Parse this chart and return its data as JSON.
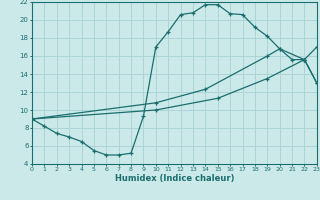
{
  "bg_color": "#cce9ea",
  "grid_color": "#add5d7",
  "line_color": "#1a6e6e",
  "xlabel": "Humidex (Indice chaleur)",
  "xlim": [
    0,
    23
  ],
  "ylim": [
    4,
    22
  ],
  "xticks": [
    0,
    1,
    2,
    3,
    4,
    5,
    6,
    7,
    8,
    9,
    10,
    11,
    12,
    13,
    14,
    15,
    16,
    17,
    18,
    19,
    20,
    21,
    22,
    23
  ],
  "yticks": [
    4,
    6,
    8,
    10,
    12,
    14,
    16,
    18,
    20,
    22
  ],
  "curve1_x": [
    0,
    1,
    2,
    3,
    4,
    5,
    6,
    7,
    8,
    9,
    10,
    11,
    12,
    13,
    14,
    15,
    16,
    17,
    18,
    19,
    20,
    21,
    22,
    23
  ],
  "curve1_y": [
    9.0,
    8.2,
    7.4,
    7.0,
    6.5,
    5.5,
    5.0,
    5.0,
    5.2,
    9.3,
    17.0,
    18.7,
    20.6,
    20.8,
    21.7,
    21.7,
    20.7,
    20.6,
    19.2,
    18.2,
    16.8,
    15.6,
    15.6,
    13.0
  ],
  "curve2_x": [
    0,
    10,
    14,
    19,
    20,
    22,
    23
  ],
  "curve2_y": [
    9.0,
    10.8,
    12.3,
    16.0,
    16.8,
    15.6,
    17.0
  ],
  "curve3_x": [
    0,
    10,
    15,
    19,
    22,
    23
  ],
  "curve3_y": [
    9.0,
    10.0,
    11.3,
    13.5,
    15.6,
    13.0
  ]
}
